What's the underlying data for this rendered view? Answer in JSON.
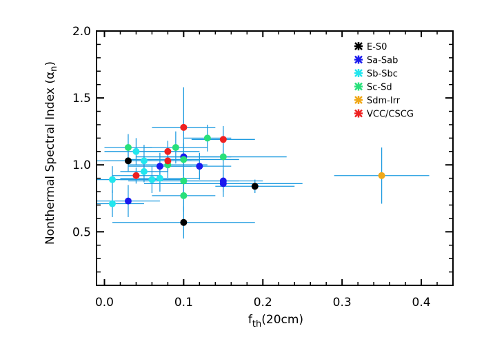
{
  "chart_data": {
    "type": "scatter",
    "xlabel_main": "f",
    "xlabel_sub": "th",
    "xlabel_rest": "(20cm)",
    "ylabel_main": "Nonthermal Spectral Index (α",
    "ylabel_sub": "n",
    "ylabel_close": ")",
    "xlim": [
      -0.01,
      0.44
    ],
    "ylim": [
      0.1,
      2.0
    ],
    "xticks": [
      0.0,
      0.1,
      0.2,
      0.3,
      0.4
    ],
    "xtick_labels": [
      "0.0",
      "0.1",
      "0.2",
      "0.3",
      "0.4"
    ],
    "yticks": [
      0.5,
      1.0,
      1.5,
      2.0
    ],
    "ytick_labels": [
      "0.5",
      "1.0",
      "1.5",
      "2.0"
    ],
    "errorbar_color": "#1e9be0",
    "legend_position": "top-right",
    "series": [
      {
        "name": "E-S0",
        "color": "#000000",
        "points": [
          {
            "x": 0.03,
            "y": 1.03,
            "xerr": 0.03,
            "yerr": 0.08
          },
          {
            "x": 0.1,
            "y": 0.57,
            "xerr": 0.09,
            "yerr": 0.12
          },
          {
            "x": 0.19,
            "y": 0.84,
            "xerr": 0.05,
            "yerr": 0.05
          }
        ]
      },
      {
        "name": "Sa-Sab",
        "color": "#1a1aee",
        "points": [
          {
            "x": 0.03,
            "y": 0.73,
            "xerr": 0.04,
            "yerr": 0.12
          },
          {
            "x": 0.07,
            "y": 0.99,
            "xerr": 0.04,
            "yerr": 0.1
          },
          {
            "x": 0.1,
            "y": 1.06,
            "xerr": 0.06,
            "yerr": 0.1
          },
          {
            "x": 0.12,
            "y": 0.99,
            "xerr": 0.04,
            "yerr": 0.1
          },
          {
            "x": 0.15,
            "y": 0.86,
            "xerr": 0.1,
            "yerr": 0.1
          },
          {
            "x": 0.15,
            "y": 0.88,
            "xerr": 0.05,
            "yerr": 0.08
          }
        ]
      },
      {
        "name": "Sb-Sbc",
        "color": "#22e6ee",
        "points": [
          {
            "x": 0.01,
            "y": 0.89,
            "xerr": 0.03,
            "yerr": 0.1
          },
          {
            "x": 0.01,
            "y": 0.71,
            "xerr": 0.04,
            "yerr": 0.1
          },
          {
            "x": 0.04,
            "y": 1.1,
            "xerr": 0.04,
            "yerr": 0.1
          },
          {
            "x": 0.05,
            "y": 1.03,
            "xerr": 0.06,
            "yerr": 0.12
          },
          {
            "x": 0.05,
            "y": 0.95,
            "xerr": 0.03,
            "yerr": 0.08
          },
          {
            "x": 0.06,
            "y": 0.89,
            "xerr": 0.04,
            "yerr": 0.1
          },
          {
            "x": 0.07,
            "y": 0.9,
            "xerr": 0.05,
            "yerr": 0.1
          }
        ]
      },
      {
        "name": "Sc-Sd",
        "color": "#28e07a",
        "points": [
          {
            "x": 0.03,
            "y": 1.13,
            "xerr": 0.03,
            "yerr": 0.1
          },
          {
            "x": 0.08,
            "y": 1.0,
            "xerr": 0.05,
            "yerr": 0.1
          },
          {
            "x": 0.09,
            "y": 1.13,
            "xerr": 0.04,
            "yerr": 0.12
          },
          {
            "x": 0.1,
            "y": 1.04,
            "xerr": 0.07,
            "yerr": 0.12
          },
          {
            "x": 0.1,
            "y": 0.88,
            "xerr": 0.07,
            "yerr": 0.12
          },
          {
            "x": 0.1,
            "y": 0.77,
            "xerr": 0.04,
            "yerr": 0.12
          },
          {
            "x": 0.13,
            "y": 1.2,
            "xerr": 0.03,
            "yerr": 0.1
          },
          {
            "x": 0.15,
            "y": 1.06,
            "xerr": 0.08,
            "yerr": 0.1
          }
        ]
      },
      {
        "name": "Sdm-Irr",
        "color": "#f0a818",
        "points": [
          {
            "x": 0.35,
            "y": 0.92,
            "xerr": 0.06,
            "yerr": 0.21
          }
        ]
      },
      {
        "name": "VCC/CSCG",
        "color": "#ee2020",
        "points": [
          {
            "x": 0.04,
            "y": 0.92,
            "xerr": 0.03,
            "yerr": 0.06
          },
          {
            "x": 0.08,
            "y": 1.1,
            "xerr": 0.04,
            "yerr": 0.08
          },
          {
            "x": 0.08,
            "y": 1.03,
            "xerr": 0.04,
            "yerr": 0.08
          },
          {
            "x": 0.1,
            "y": 1.28,
            "xerr": 0.04,
            "yerr": 0.3
          },
          {
            "x": 0.15,
            "y": 1.19,
            "xerr": 0.04,
            "yerr": 0.1
          }
        ]
      }
    ]
  }
}
